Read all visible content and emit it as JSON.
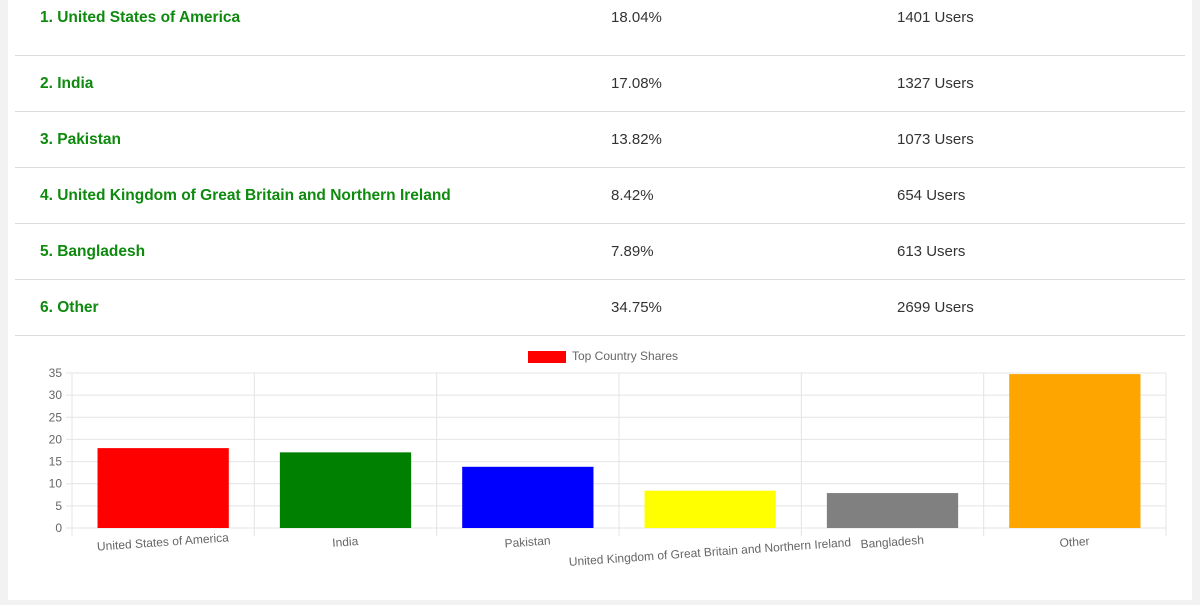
{
  "table": {
    "rows": [
      {
        "country": "1. United States of America",
        "share": "18.04%",
        "users": "1401 Users"
      },
      {
        "country": "2. India",
        "share": "17.08%",
        "users": "1327 Users"
      },
      {
        "country": "3. Pakistan",
        "share": "13.82%",
        "users": "1073 Users"
      },
      {
        "country": "4. United Kingdom of Great Britain and Northern Ireland",
        "share": "8.42%",
        "users": "654 Users"
      },
      {
        "country": "5. Bangladesh",
        "share": "7.89%",
        "users": "613 Users"
      },
      {
        "country": "6. Other",
        "share": "34.75%",
        "users": "2699 Users"
      }
    ]
  },
  "chart_data": {
    "type": "bar",
    "categories": [
      "United States of America",
      "India",
      "Pakistan",
      "United Kingdom of Great Britain and Northern Ireland",
      "Bangladesh",
      "Other"
    ],
    "series": [
      {
        "name": "Top Country Shares",
        "values": [
          18.04,
          17.08,
          13.82,
          8.42,
          7.89,
          34.75
        ],
        "colors": [
          "#ff0000",
          "#008000",
          "#0000ff",
          "#ffff00",
          "#808080",
          "#ffa500"
        ]
      }
    ],
    "legend_color": "#ff0000",
    "ylim": [
      0,
      35
    ],
    "yticks": [
      "0",
      "5",
      "10",
      "15",
      "20",
      "25",
      "30",
      "35"
    ],
    "legend_position": "top-center",
    "grid": true
  }
}
